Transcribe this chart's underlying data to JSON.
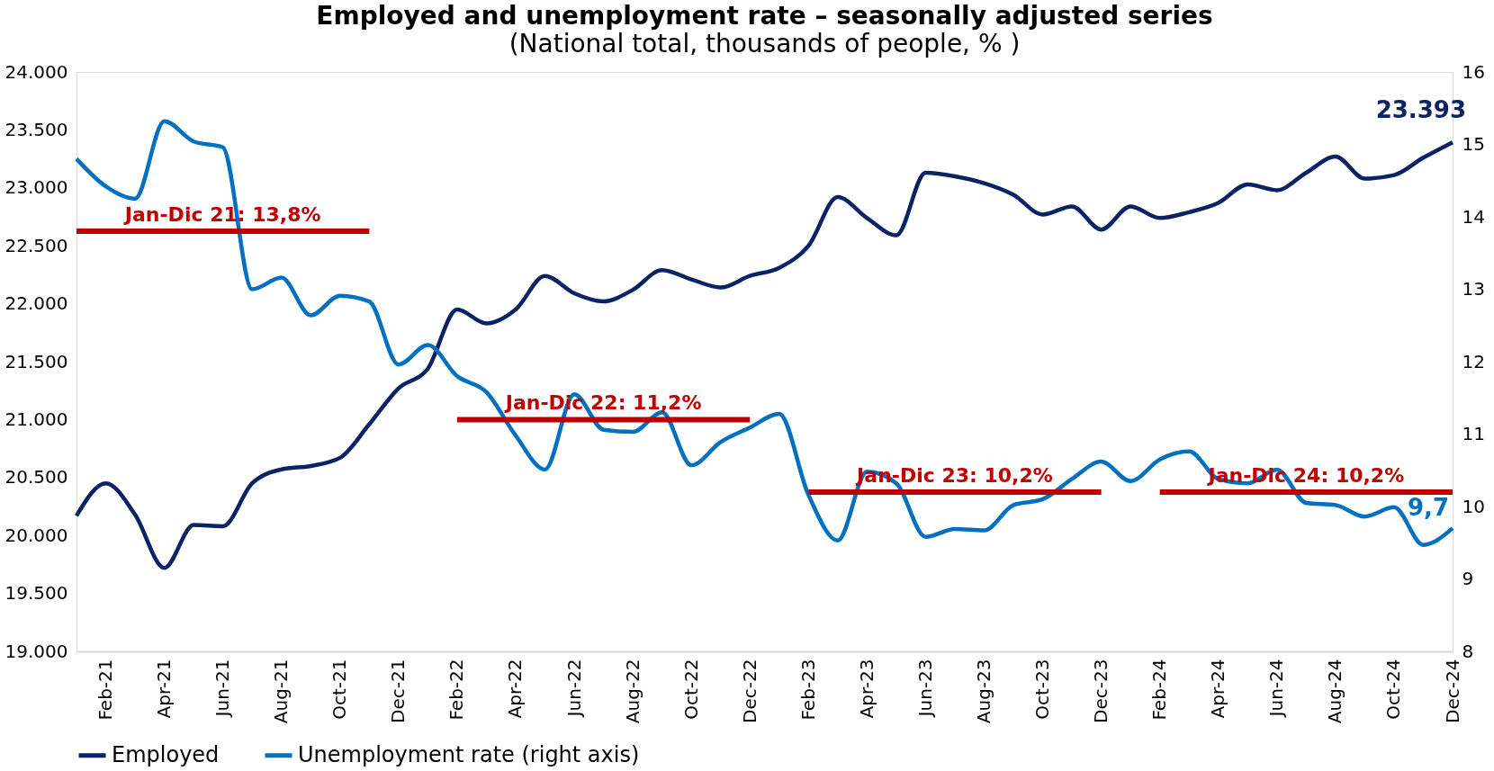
{
  "chart_data": {
    "type": "line",
    "title": "Employed and unemployment rate – seasonally adjusted series",
    "subtitle": "(National total, thousands of people, % )",
    "categories": [
      null,
      "Feb-21",
      null,
      "Apr-21",
      null,
      "Jun-21",
      null,
      "Aug-21",
      null,
      "Oct-21",
      null,
      "Dec-21",
      null,
      "Feb-22",
      null,
      "Apr-22",
      null,
      "Jun-22",
      null,
      "Aug-22",
      null,
      "Oct-22",
      null,
      "Dec-22",
      null,
      "Feb-23",
      null,
      "Apr-23",
      null,
      "Jun-23",
      null,
      "Aug-23",
      null,
      "Oct-23",
      null,
      "Dec-23",
      null,
      "Feb-24",
      null,
      "Apr-24",
      null,
      "Jun-24",
      null,
      "Aug-24",
      null,
      "Oct-24",
      null,
      "Dec-24"
    ],
    "series": [
      {
        "name": "Employed",
        "color": "#0b2265",
        "values": [
          20170,
          20450,
          20180,
          19720,
          20090,
          20080,
          20450,
          20570,
          20600,
          20670,
          20960,
          21270,
          21440,
          21950,
          21830,
          21950,
          22240,
          22090,
          22020,
          22120,
          22290,
          22210,
          22140,
          22240,
          22310,
          22500,
          22920,
          22740,
          22590,
          23130,
          23100,
          23040,
          22940,
          22770,
          22840,
          22640,
          22840,
          22740,
          22790,
          22870,
          23030,
          22980,
          23130,
          23270,
          23080,
          23110,
          23260,
          23393
        ],
        "value_labels": [
          null,
          null,
          null,
          null,
          null,
          null,
          null,
          null,
          null,
          null,
          null,
          null,
          null,
          null,
          null,
          null,
          null,
          null,
          null,
          null,
          null,
          null,
          null,
          null,
          null,
          null,
          null,
          null,
          null,
          null,
          null,
          null,
          null,
          null,
          null,
          null,
          null,
          null,
          null,
          null,
          null,
          null,
          null,
          null,
          null,
          null,
          null,
          "23.393"
        ]
      },
      {
        "name": "Unemployment rate (right axis)",
        "color": "#0070c0",
        "axis": "y2",
        "values": [
          14.8,
          14.42,
          14.25,
          15.32,
          15.04,
          14.96,
          13.0,
          13.16,
          12.64,
          12.91,
          12.83,
          11.96,
          12.23,
          11.8,
          11.58,
          10.98,
          10.51,
          11.55,
          11.06,
          11.03,
          11.3,
          10.57,
          10.89,
          11.09,
          11.28,
          10.16,
          9.53,
          10.48,
          10.32,
          9.58,
          9.69,
          9.67,
          10.02,
          10.1,
          10.38,
          10.62,
          10.35,
          10.65,
          10.76,
          10.38,
          10.32,
          10.51,
          10.05,
          10.02,
          9.86,
          9.99,
          9.47,
          9.7
        ],
        "value_labels": [
          null,
          null,
          null,
          null,
          null,
          null,
          null,
          null,
          null,
          null,
          null,
          null,
          null,
          null,
          null,
          null,
          null,
          null,
          null,
          null,
          null,
          null,
          null,
          null,
          null,
          null,
          null,
          null,
          null,
          null,
          null,
          null,
          null,
          null,
          null,
          null,
          null,
          null,
          null,
          null,
          null,
          null,
          null,
          null,
          null,
          null,
          null,
          "9,7"
        ]
      },
      {
        "name": "Jan-Dic 21: 13,8%",
        "color": "#c00000",
        "axis": "y2",
        "values": [
          13.8,
          13.8,
          13.8,
          13.8,
          13.8,
          13.8,
          13.8,
          13.8,
          13.8,
          13.8,
          13.8,
          null,
          null,
          null,
          null,
          null,
          null,
          null,
          null,
          null,
          null,
          null,
          null,
          null,
          null,
          null,
          null,
          null,
          null,
          null,
          null,
          null,
          null,
          null,
          null,
          null,
          null,
          null,
          null,
          null,
          null,
          null,
          null,
          null,
          null,
          null,
          null,
          null
        ]
      },
      {
        "name": "Jan-Dic 22: 11,2%",
        "color": "#c00000",
        "axis": "y2",
        "values": [
          null,
          null,
          null,
          null,
          null,
          null,
          null,
          null,
          null,
          null,
          null,
          null,
          null,
          11.2,
          11.2,
          11.2,
          11.2,
          11.2,
          11.2,
          11.2,
          11.2,
          11.2,
          11.2,
          11.2,
          null,
          null,
          null,
          null,
          null,
          null,
          null,
          null,
          null,
          null,
          null,
          null,
          null,
          null,
          null,
          null,
          null,
          null,
          null,
          null,
          null,
          null,
          null,
          null
        ]
      },
      {
        "name": "Jan-Dic 23: 10,2%",
        "color": "#c00000",
        "axis": "y2",
        "values": [
          null,
          null,
          null,
          null,
          null,
          null,
          null,
          null,
          null,
          null,
          null,
          null,
          null,
          null,
          null,
          null,
          null,
          null,
          null,
          null,
          null,
          null,
          null,
          null,
          null,
          10.2,
          10.2,
          10.2,
          10.2,
          10.2,
          10.2,
          10.2,
          10.2,
          10.2,
          10.2,
          10.2,
          null,
          null,
          null,
          null,
          null,
          null,
          null,
          null,
          null,
          null,
          null,
          null
        ]
      },
      {
        "name": "Jan-Dic 24: 10,2%",
        "color": "#c00000",
        "axis": "y2",
        "values": [
          null,
          null,
          null,
          null,
          null,
          null,
          null,
          null,
          null,
          null,
          null,
          null,
          null,
          null,
          null,
          null,
          null,
          null,
          null,
          null,
          null,
          null,
          null,
          null,
          null,
          null,
          null,
          null,
          null,
          null,
          null,
          null,
          null,
          null,
          null,
          null,
          null,
          10.2,
          10.2,
          10.2,
          10.2,
          10.2,
          10.2,
          10.2,
          10.2,
          10.2,
          10.2,
          10.2
        ]
      }
    ],
    "ylim": [
      19000,
      24000
    ],
    "yticks": [
      {
        "value": 19000,
        "label": "19.000"
      },
      {
        "value": 19500,
        "label": "19.500"
      },
      {
        "value": 20000,
        "label": "20.000"
      },
      {
        "value": 20500,
        "label": "20.500"
      },
      {
        "value": 21000,
        "label": "21.000"
      },
      {
        "value": 21500,
        "label": "21.500"
      },
      {
        "value": 22000,
        "label": "22.000"
      },
      {
        "value": 22500,
        "label": "22.500"
      },
      {
        "value": 23000,
        "label": "23.000"
      },
      {
        "value": 23500,
        "label": "23.500"
      },
      {
        "value": 24000,
        "label": "24.000"
      }
    ],
    "y2lim": [
      8,
      16
    ],
    "y2ticks": [
      8,
      9,
      10,
      11,
      12,
      13,
      14,
      15,
      16
    ],
    "legend": "bottom",
    "line_style": "solid",
    "marker": "none"
  }
}
